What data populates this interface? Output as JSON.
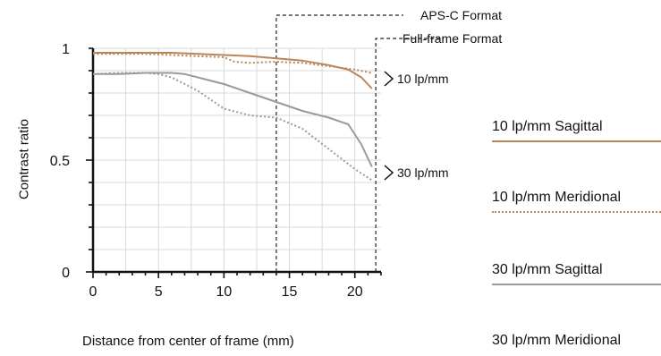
{
  "chart_data": {
    "type": "line",
    "xlabel": "Distance from center of frame (mm)",
    "ylabel": "Contrast ratio",
    "xlim": [
      0,
      22
    ],
    "ylim": [
      0,
      1
    ],
    "xticks": [
      0,
      5,
      10,
      15,
      20
    ],
    "yticks": [
      0,
      0.5,
      1
    ],
    "grid": true,
    "series": [
      {
        "name": "10 lp/mm Sagittal",
        "color": "#b9865a",
        "style": "solid",
        "x": [
          0,
          2,
          4,
          6,
          8,
          10,
          12,
          14,
          16,
          18,
          19.5,
          20.5,
          21.3
        ],
        "y": [
          0.98,
          0.98,
          0.98,
          0.98,
          0.975,
          0.97,
          0.965,
          0.955,
          0.945,
          0.925,
          0.905,
          0.87,
          0.82
        ]
      },
      {
        "name": "10 lp/mm Meridional",
        "color": "#b9865a",
        "style": "dotted",
        "x": [
          0,
          2,
          4,
          6,
          8,
          10,
          10.8,
          12,
          14,
          16,
          18,
          20,
          21.3
        ],
        "y": [
          0.975,
          0.975,
          0.975,
          0.97,
          0.965,
          0.96,
          0.94,
          0.935,
          0.94,
          0.935,
          0.92,
          0.905,
          0.89
        ]
      },
      {
        "name": "30 lp/mm Sagittal",
        "color": "#9a9a9a",
        "style": "solid",
        "x": [
          0,
          2,
          4,
          6,
          7,
          8,
          10,
          12,
          14,
          16,
          18,
          19.5,
          20.5,
          21.3
        ],
        "y": [
          0.885,
          0.885,
          0.89,
          0.89,
          0.885,
          0.87,
          0.84,
          0.8,
          0.76,
          0.72,
          0.69,
          0.66,
          0.57,
          0.47
        ]
      },
      {
        "name": "30 lp/mm Meridional",
        "color": "#9a9a9a",
        "style": "dotted",
        "x": [
          0,
          2,
          4,
          5,
          6,
          7,
          8,
          9,
          10,
          12,
          14,
          16,
          18,
          20,
          21.3
        ],
        "y": [
          0.885,
          0.89,
          0.89,
          0.885,
          0.87,
          0.84,
          0.81,
          0.77,
          0.73,
          0.7,
          0.69,
          0.64,
          0.55,
          0.46,
          0.41
        ]
      }
    ],
    "format_markers": [
      {
        "label": "APS-C Format",
        "x": 14
      },
      {
        "label": "Full-frame Format",
        "x": 21.6
      }
    ],
    "annotations": [
      "10 lp/mm",
      "30 lp/mm"
    ]
  }
}
